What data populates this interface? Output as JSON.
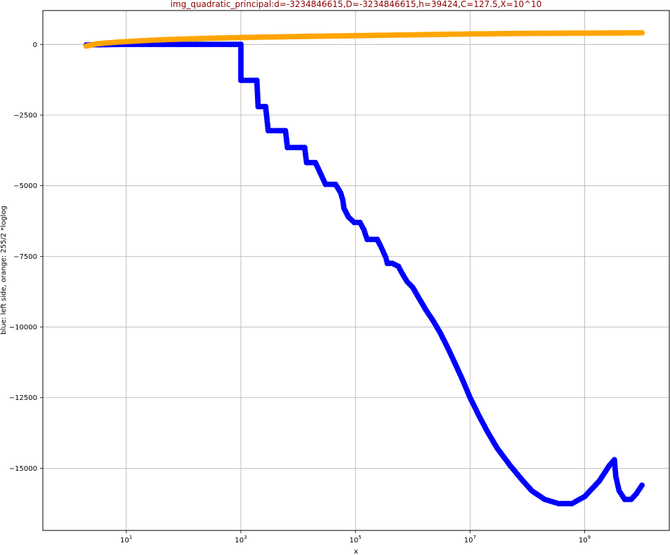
{
  "chart_data": {
    "type": "scatter",
    "title": "img_quadratic_principal:d=-3234846615,D=-3234846615,h=39424,C=127.5,X=10^10",
    "xlabel": "x",
    "ylabel": "blue: left side, orange: 255/2 *loglog",
    "x_scale": "log",
    "xlim": [
      0.35,
      30000000000
    ],
    "ylim": [
      -17200,
      1200
    ],
    "grid": true,
    "colors": {
      "title": "#8b0000",
      "blue": "#0000ff",
      "orange": "#ffa500",
      "grid": "#b0b0b0"
    },
    "x_ticks": [
      {
        "value": 10,
        "base": "10",
        "exp": "1"
      },
      {
        "value": 1000,
        "base": "10",
        "exp": "3"
      },
      {
        "value": 100000,
        "base": "10",
        "exp": "5"
      },
      {
        "value": 10000000,
        "base": "10",
        "exp": "7"
      },
      {
        "value": 1000000000,
        "base": "10",
        "exp": "9"
      }
    ],
    "y_ticks": [
      {
        "value": 0,
        "label": "0"
      },
      {
        "value": -2500,
        "label": "−2500"
      },
      {
        "value": -5000,
        "label": "−5000"
      },
      {
        "value": -7500,
        "label": "−7500"
      },
      {
        "value": -10000,
        "label": "−10000"
      },
      {
        "value": -12500,
        "label": "−12500"
      },
      {
        "value": -15000,
        "label": "−15000"
      }
    ],
    "series": [
      {
        "color": "#0000ff",
        "points": [
          [
            2,
            -20
          ],
          [
            3,
            -10
          ],
          [
            5,
            -5
          ],
          [
            8,
            0
          ],
          [
            12,
            0
          ],
          [
            18,
            0
          ],
          [
            25,
            0
          ],
          [
            35,
            0
          ],
          [
            50,
            0
          ],
          [
            70,
            0
          ],
          [
            100,
            0
          ],
          [
            150,
            0
          ],
          [
            220,
            0
          ],
          [
            330,
            0
          ],
          [
            500,
            0
          ],
          [
            750,
            0
          ],
          [
            1000,
            0
          ],
          [
            1000,
            -1270
          ],
          [
            1400,
            -1270
          ],
          [
            1900,
            -1270
          ],
          [
            2000,
            -2200
          ],
          [
            2700,
            -2200
          ],
          [
            3000,
            -3050
          ],
          [
            4200,
            -3050
          ],
          [
            6000,
            -3050
          ],
          [
            6500,
            -3650
          ],
          [
            9000,
            -3650
          ],
          [
            13000,
            -3650
          ],
          [
            14000,
            -4180
          ],
          [
            20000,
            -4180
          ],
          [
            25000,
            -4600
          ],
          [
            30000,
            -4950
          ],
          [
            45000,
            -4950
          ],
          [
            55000,
            -5250
          ],
          [
            60000,
            -5500
          ],
          [
            63000,
            -5800
          ],
          [
            75000,
            -6100
          ],
          [
            95000,
            -6300
          ],
          [
            120000,
            -6300
          ],
          [
            140000,
            -6550
          ],
          [
            160000,
            -6900
          ],
          [
            240000,
            -6900
          ],
          [
            270000,
            -7100
          ],
          [
            300000,
            -7300
          ],
          [
            340000,
            -7550
          ],
          [
            360000,
            -7750
          ],
          [
            440000,
            -7750
          ],
          [
            560000,
            -7850
          ],
          [
            650000,
            -8100
          ],
          [
            800000,
            -8400
          ],
          [
            1000000,
            -8600
          ],
          [
            1300000,
            -9000
          ],
          [
            1700000,
            -9400
          ],
          [
            2300000,
            -9800
          ],
          [
            3000000,
            -10200
          ],
          [
            4000000,
            -10700
          ],
          [
            5500000,
            -11300
          ],
          [
            7500000,
            -11900
          ],
          [
            10000000,
            -12500
          ],
          [
            14000000,
            -13100
          ],
          [
            20000000,
            -13700
          ],
          [
            30000000,
            -14300
          ],
          [
            50000000,
            -14900
          ],
          [
            80000000,
            -15400
          ],
          [
            120000000,
            -15800
          ],
          [
            200000000,
            -16100
          ],
          [
            350000000,
            -16250
          ],
          [
            600000000,
            -16250
          ],
          [
            1000000000,
            -16000
          ],
          [
            1800000000,
            -15450
          ],
          [
            2700000000,
            -14900
          ],
          [
            3300000000,
            -14700
          ],
          [
            3500000000,
            -15300
          ],
          [
            4000000000,
            -15800
          ],
          [
            5000000000,
            -16100
          ],
          [
            6500000000,
            -16100
          ],
          [
            8000000000,
            -15900
          ],
          [
            10000000000,
            -15600
          ]
        ]
      },
      {
        "color": "#ffa500",
        "points": [
          [
            2,
            -60
          ],
          [
            3,
            20
          ],
          [
            5,
            60
          ],
          [
            8,
            90
          ],
          [
            12,
            110
          ],
          [
            18,
            130
          ],
          [
            25,
            145
          ],
          [
            35,
            160
          ],
          [
            50,
            170
          ],
          [
            70,
            180
          ],
          [
            100,
            190
          ],
          [
            200,
            210
          ],
          [
            500,
            230
          ],
          [
            1000,
            245
          ],
          [
            10000,
            280
          ],
          [
            100000,
            310
          ],
          [
            1000000,
            340
          ],
          [
            10000000,
            370
          ],
          [
            100000000,
            390
          ],
          [
            1000000000,
            400
          ],
          [
            10000000000,
            410
          ]
        ]
      }
    ]
  }
}
